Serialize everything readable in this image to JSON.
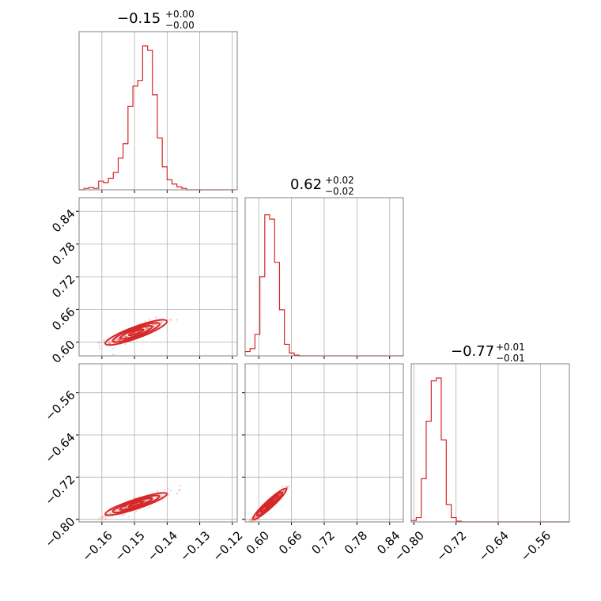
{
  "colors": {
    "series": "#d62728",
    "grid": "#b0b0b0",
    "frame": "#808080"
  },
  "chart_data": {
    "type": "corner",
    "grid": true,
    "params": [
      {
        "median": "−0.15",
        "upper": "+0.00",
        "lower": "−0.00"
      },
      {
        "median": "0.62",
        "upper": "+0.02",
        "lower": "−0.02"
      },
      {
        "median": "−0.77",
        "upper": "+0.01",
        "lower": "−0.01"
      }
    ],
    "axes": [
      {
        "range": [
          -0.167,
          -0.1185
        ],
        "ticks": [
          -0.16,
          -0.15,
          -0.14,
          -0.13,
          -0.12
        ],
        "tick_labels": [
          "−0.16",
          "−0.15",
          "−0.14",
          "−0.13",
          "−0.12"
        ]
      },
      {
        "range": [
          0.575,
          0.865
        ],
        "ticks": [
          0.6,
          0.66,
          0.72,
          0.78,
          0.84
        ],
        "tick_labels": [
          "0.60",
          "0.66",
          "0.72",
          "0.78",
          "0.84"
        ]
      },
      {
        "range": [
          -0.805,
          -0.505
        ],
        "ticks": [
          -0.8,
          -0.72,
          -0.64,
          -0.56
        ],
        "tick_labels": [
          "−0.80",
          "−0.72",
          "−0.64",
          "−0.56"
        ]
      }
    ],
    "histograms": [
      {
        "bins": [
          -0.167,
          -0.1655,
          -0.164,
          -0.1625,
          -0.161,
          -0.1595,
          -0.158,
          -0.1565,
          -0.155,
          -0.1535,
          -0.152,
          -0.1505,
          -0.149,
          -0.1475,
          -0.146,
          -0.1445,
          -0.143,
          -0.1415,
          -0.14,
          -0.1385,
          -0.137,
          -0.1355,
          -0.134,
          -0.1325,
          -0.131,
          -0.1295,
          -0.128,
          -0.1265,
          -0.125,
          -0.1235,
          -0.122,
          -0.1205,
          -0.119
        ],
        "counts": [
          0,
          0.01,
          0.015,
          0.01,
          0.06,
          0.05,
          0.08,
          0.12,
          0.22,
          0.32,
          0.58,
          0.72,
          0.76,
          1.0,
          0.97,
          0.66,
          0.36,
          0.16,
          0.07,
          0.04,
          0.02,
          0.01,
          0,
          0,
          0,
          0,
          0,
          0,
          0,
          0,
          0,
          0
        ]
      },
      {
        "bins": [
          0.575,
          0.584,
          0.593,
          0.602,
          0.611,
          0.62,
          0.629,
          0.638,
          0.647,
          0.656,
          0.665,
          0.674,
          0.683,
          0.692,
          0.701,
          0.71,
          0.719,
          0.728,
          0.737,
          0.746,
          0.755,
          0.764,
          0.773,
          0.782,
          0.791,
          0.8,
          0.809,
          0.818,
          0.827,
          0.836,
          0.845,
          0.854,
          0.865
        ],
        "counts": [
          0.03,
          0.05,
          0.15,
          0.55,
          0.98,
          0.95,
          0.65,
          0.32,
          0.08,
          0.02,
          0.005,
          0,
          0,
          0,
          0,
          0,
          0,
          0,
          0,
          0,
          0,
          0,
          0,
          0,
          0,
          0,
          0,
          0,
          0,
          0,
          0,
          0
        ]
      },
      {
        "bins": [
          -0.805,
          -0.7955,
          -0.786,
          -0.7765,
          -0.767,
          -0.7575,
          -0.748,
          -0.7385,
          -0.729,
          -0.7195,
          -0.71,
          -0.7005,
          -0.691,
          -0.6815,
          -0.672,
          -0.6625,
          -0.653,
          -0.6435,
          -0.634,
          -0.6245,
          -0.615,
          -0.6055,
          -0.596,
          -0.5865,
          -0.577,
          -0.5675,
          -0.558,
          -0.5485,
          -0.539,
          -0.5295,
          -0.52,
          -0.5105,
          -0.505
        ],
        "counts": [
          0.01,
          0.03,
          0.3,
          0.7,
          0.98,
          1.0,
          0.57,
          0.12,
          0.03,
          0.005,
          0,
          0,
          0,
          0,
          0,
          0,
          0,
          0,
          0,
          0,
          0,
          0,
          0,
          0,
          0,
          0,
          0,
          0,
          0,
          0,
          0,
          0
        ]
      }
    ],
    "correlations": [
      {
        "row": 1,
        "col": 0,
        "x_center": -0.1495,
        "y_center": 0.618,
        "x_sd": 0.0045,
        "slope": 2.2,
        "width": 0.006
      },
      {
        "row": 2,
        "col": 0,
        "x_center": -0.1495,
        "y_center": -0.771,
        "x_sd": 0.0045,
        "slope": 2.05,
        "width": 0.005
      },
      {
        "row": 2,
        "col": 1,
        "x_center": 0.62,
        "y_center": -0.771,
        "x_sd": 0.0145,
        "slope": 0.95,
        "width": 0.003
      }
    ]
  }
}
